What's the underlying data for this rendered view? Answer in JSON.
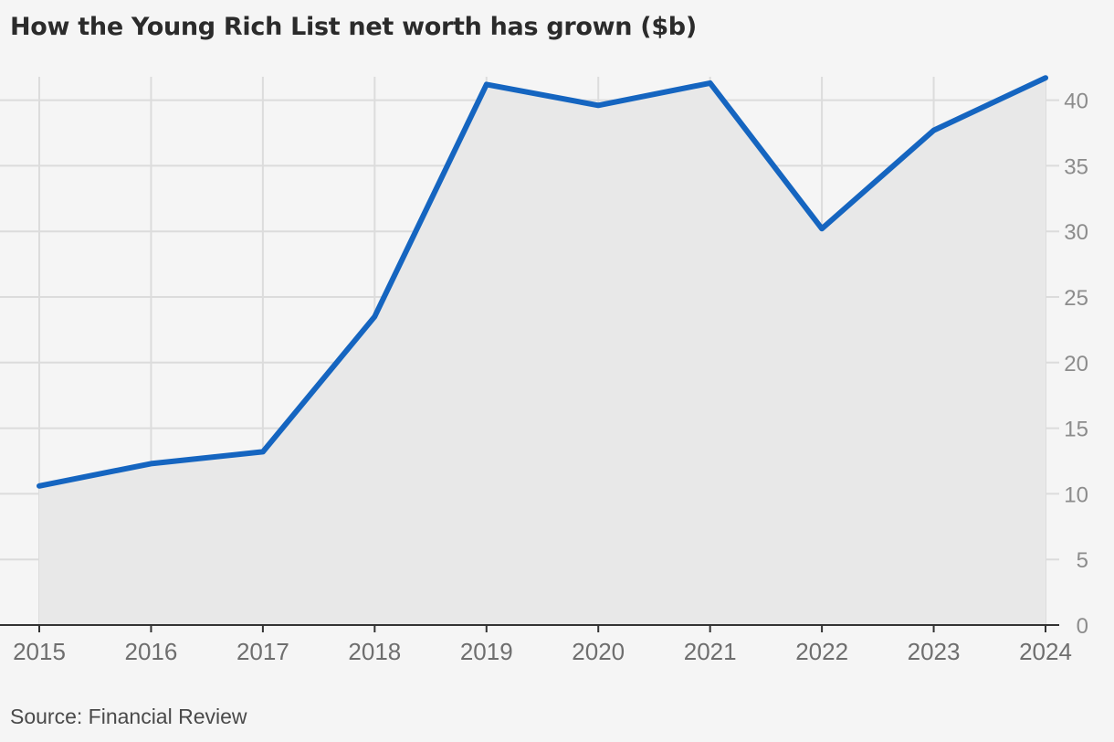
{
  "title": "How the Young Rich List net worth has grown ($b)",
  "source": "Source: Financial Review",
  "chart_data": {
    "type": "area",
    "title": "How the Young Rich List net worth has grown ($b)",
    "xlabel": "",
    "ylabel": "",
    "x": [
      "2015",
      "2016",
      "2017",
      "2018",
      "2019",
      "2020",
      "2021",
      "2022",
      "2023",
      "2024"
    ],
    "series": [
      {
        "values": [
          10.6,
          12.3,
          13.2,
          23.5,
          41.2,
          39.6,
          41.3,
          30.2,
          37.7,
          41.7
        ],
        "color": "#1565c0"
      }
    ],
    "yticks": [
      0,
      5,
      10,
      15,
      20,
      25,
      30,
      35,
      40
    ],
    "ylim": [
      0,
      42
    ],
    "y_axis_side": "right",
    "grid": true,
    "fill_color": "#e8e8e8",
    "legend": "none"
  }
}
